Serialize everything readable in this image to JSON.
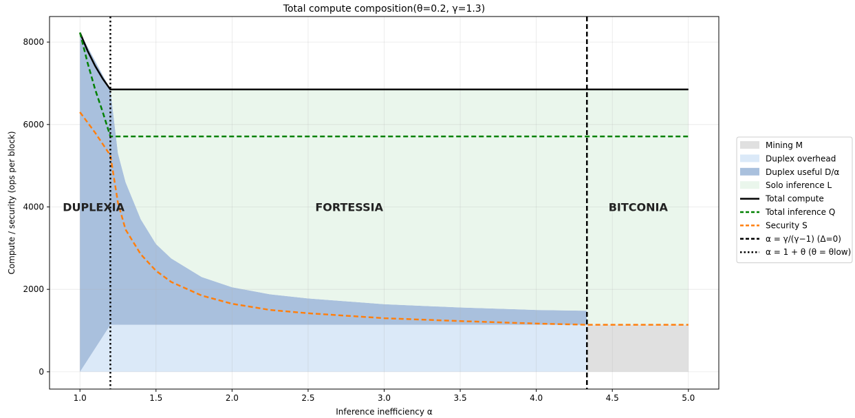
{
  "chart_data": {
    "type": "area",
    "title": "Total compute composition(θ=0.2, γ=1.3)",
    "xlabel": "Inference inefficiency α",
    "ylabel": "Compute / security (ops per block)",
    "xlim": [
      0.8,
      5.2
    ],
    "ylim": [
      -420,
      8620
    ],
    "xticks": [
      1.0,
      1.5,
      2.0,
      2.5,
      3.0,
      3.5,
      4.0,
      4.5,
      5.0
    ],
    "xtick_labels": [
      "1.0",
      "1.5",
      "2.0",
      "2.5",
      "3.0",
      "3.5",
      "4.0",
      "4.5",
      "5.0"
    ],
    "yticks": [
      0,
      2000,
      4000,
      6000,
      8000
    ],
    "ytick_labels": [
      "0",
      "2000",
      "4000",
      "6000",
      "8000"
    ],
    "grid": true,
    "legend_position": "outside-right",
    "regions": [
      {
        "label": "DUPLEXIA",
        "x": 1.09,
        "y": 4000
      },
      {
        "label": "FORTESSIA",
        "x": 2.77,
        "y": 4000
      },
      {
        "label": "BITCONIA",
        "x": 4.67,
        "y": 4000
      }
    ],
    "vlines": [
      {
        "x": 4.333,
        "style": "dashed",
        "legend": "α = γ/(γ−1)  (Δ=0)"
      },
      {
        "x": 1.2,
        "style": "dotted",
        "legend": "α = 1 + θ  (θ = θlow)"
      }
    ],
    "series": [
      {
        "name": "Mining M",
        "kind": "area",
        "color": "#e0e0e0",
        "x": [
          4.333,
          5.0
        ],
        "low": [
          0,
          0
        ],
        "high": [
          1140,
          1140
        ]
      },
      {
        "name": "Duplex overhead",
        "kind": "area",
        "color": "#dbe9f8",
        "x": [
          1.0,
          1.025,
          1.05,
          1.075,
          1.1,
          1.125,
          1.15,
          1.175,
          1.2,
          4.333
        ],
        "low": [
          0,
          0,
          0,
          0,
          0,
          0,
          0,
          0,
          0,
          0
        ],
        "high": [
          0,
          280,
          520,
          700,
          850,
          960,
          1050,
          1110,
          1140,
          1140
        ]
      },
      {
        "name": "Duplex useful D/α",
        "kind": "area",
        "color": "#a9c0dd",
        "x": [
          1.0,
          1.2,
          1.25,
          1.3,
          1.4,
          1.5,
          1.6,
          1.8,
          2.0,
          2.25,
          2.5,
          3.0,
          3.5,
          4.0,
          4.333
        ],
        "low": [
          0,
          1140,
          1140,
          1140,
          1140,
          1140,
          1140,
          1140,
          1140,
          1140,
          1140,
          1140,
          1140,
          1140,
          1140
        ],
        "high": [
          8230,
          6850,
          5300,
          4600,
          3700,
          3100,
          2750,
          2300,
          2050,
          1880,
          1780,
          1640,
          1560,
          1500,
          1480
        ]
      },
      {
        "name": "Solo inference L",
        "kind": "area",
        "color": "#eaf6ec",
        "x": [
          1.2,
          1.25,
          1.3,
          1.4,
          1.5,
          1.6,
          1.8,
          2.0,
          2.25,
          2.5,
          3.0,
          3.5,
          4.0,
          4.333,
          4.333,
          5.0
        ],
        "low": [
          6850,
          5300,
          4600,
          3700,
          3100,
          2750,
          2300,
          2050,
          1880,
          1780,
          1640,
          1560,
          1500,
          1480,
          1140,
          1140
        ],
        "high": [
          6850,
          6850,
          6850,
          6850,
          6850,
          6850,
          6850,
          6850,
          6850,
          6850,
          6850,
          6850,
          6850,
          6850,
          6850,
          6850
        ]
      },
      {
        "name": "Total compute",
        "kind": "line",
        "color": "#000000",
        "dash": "solid",
        "x": [
          1.0,
          1.05,
          1.1,
          1.15,
          1.2,
          5.0
        ],
        "y": [
          8230,
          7790,
          7420,
          7110,
          6850,
          6850
        ]
      },
      {
        "name": "Total inference Q",
        "kind": "line",
        "color": "#008000",
        "dash": "dashed",
        "x": [
          1.0,
          1.05,
          1.1,
          1.15,
          1.2,
          5.0
        ],
        "y": [
          8230,
          7500,
          6850,
          6300,
          5710,
          5710
        ]
      },
      {
        "name": "Security S",
        "kind": "line",
        "color": "#ff7f0e",
        "dash": "dashed",
        "x": [
          1.0,
          1.1,
          1.2,
          1.25,
          1.3,
          1.4,
          1.5,
          1.6,
          1.8,
          2.0,
          2.25,
          2.5,
          3.0,
          3.5,
          4.0,
          4.333,
          5.0
        ],
        "y": [
          6300,
          5800,
          5250,
          4100,
          3450,
          2850,
          2450,
          2180,
          1850,
          1650,
          1500,
          1420,
          1300,
          1230,
          1170,
          1140,
          1140
        ]
      }
    ],
    "legend": [
      {
        "label": "Mining M",
        "type": "patch",
        "color": "#e0e0e0"
      },
      {
        "label": "Duplex overhead",
        "type": "patch",
        "color": "#dbe9f8"
      },
      {
        "label": "Duplex useful D/α",
        "type": "patch",
        "color": "#a9c0dd"
      },
      {
        "label": "Solo inference L",
        "type": "patch",
        "color": "#eaf6ec"
      },
      {
        "label": "Total compute",
        "type": "line",
        "color": "#000000",
        "dash": "solid"
      },
      {
        "label": "Total inference Q",
        "type": "line",
        "color": "#008000",
        "dash": "dashed"
      },
      {
        "label": "Security S",
        "type": "line",
        "color": "#ff7f0e",
        "dash": "dashed"
      },
      {
        "label": "α = γ/(γ−1)  (Δ=0)",
        "type": "line",
        "color": "#000000",
        "dash": "dashed"
      },
      {
        "label": "α = 1 + θ  (θ = θlow)",
        "type": "line",
        "color": "#000000",
        "dash": "dotted"
      }
    ]
  }
}
